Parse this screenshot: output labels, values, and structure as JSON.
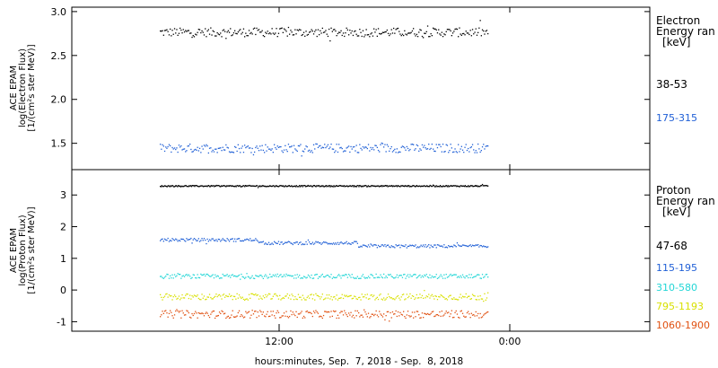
{
  "chart_data": [
    {
      "type": "scatter",
      "panel": "electron",
      "ylabel_lines": [
        "ACE EPAM",
        "log(Electron Flux)",
        "[1/(cm²s ster MeV)]"
      ],
      "ylim": [
        1.2,
        3.05
      ],
      "yticks": [
        1.5,
        2.0,
        2.5,
        3.0
      ],
      "ytick_labels": [
        "1.5",
        "2.0",
        "2.5",
        "3.0"
      ],
      "legend_title": [
        "Electron",
        "Energy ran",
        "[keV]"
      ],
      "series": [
        {
          "name": "38-53",
          "color": "#000000",
          "mean": 2.77,
          "spread": 0.05
        },
        {
          "name": "175-315",
          "color": "#1f5fd6",
          "mean": 1.45,
          "spread": 0.05
        }
      ]
    },
    {
      "type": "scatter",
      "panel": "proton",
      "ylabel_lines": [
        "ACE EPAM",
        "log(Proton Flux)",
        "[1/(cm²s ster MeV)]"
      ],
      "ylim": [
        -1.3,
        3.8
      ],
      "yticks": [
        -1,
        0,
        1,
        2,
        3
      ],
      "ytick_labels": [
        "-1",
        "0",
        "1",
        "2",
        "3"
      ],
      "legend_title": [
        "Proton",
        "Energy ran",
        "[keV]"
      ],
      "series": [
        {
          "name": "47-68",
          "color": "#000000",
          "mean": 3.3,
          "spread": 0.02
        },
        {
          "name": "115-195",
          "color": "#1f5fd6",
          "mean": 1.45,
          "spread": 0.05
        },
        {
          "name": "310-580",
          "color": "#22d6d6",
          "mean": 0.45,
          "spread": 0.07
        },
        {
          "name": "795-1193",
          "color": "#d8e000",
          "mean": -0.2,
          "spread": 0.1
        },
        {
          "name": "1060-1900",
          "color": "#e05010",
          "mean": -0.75,
          "spread": 0.12
        }
      ]
    }
  ],
  "xaxis": {
    "title": "hours:minutes, Sep.  7, 2018 - Sep.  8, 2018",
    "tick_labels": [
      "12:00",
      "0:00"
    ]
  }
}
